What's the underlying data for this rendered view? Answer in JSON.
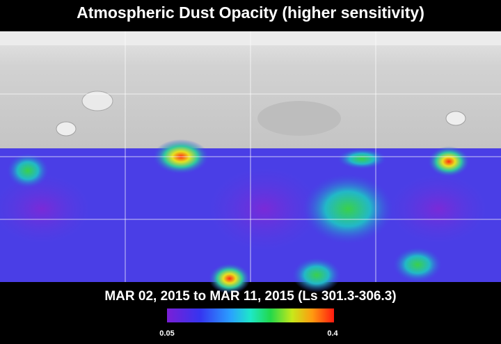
{
  "title": "Atmospheric Dust Opacity (higher sensitivity)",
  "subtitle": "MAR 02, 2015 to MAR 11, 2015 (Ls 301.3-306.3)",
  "colorbar": {
    "ticks": [
      0.05,
      0.4
    ]
  }
}
